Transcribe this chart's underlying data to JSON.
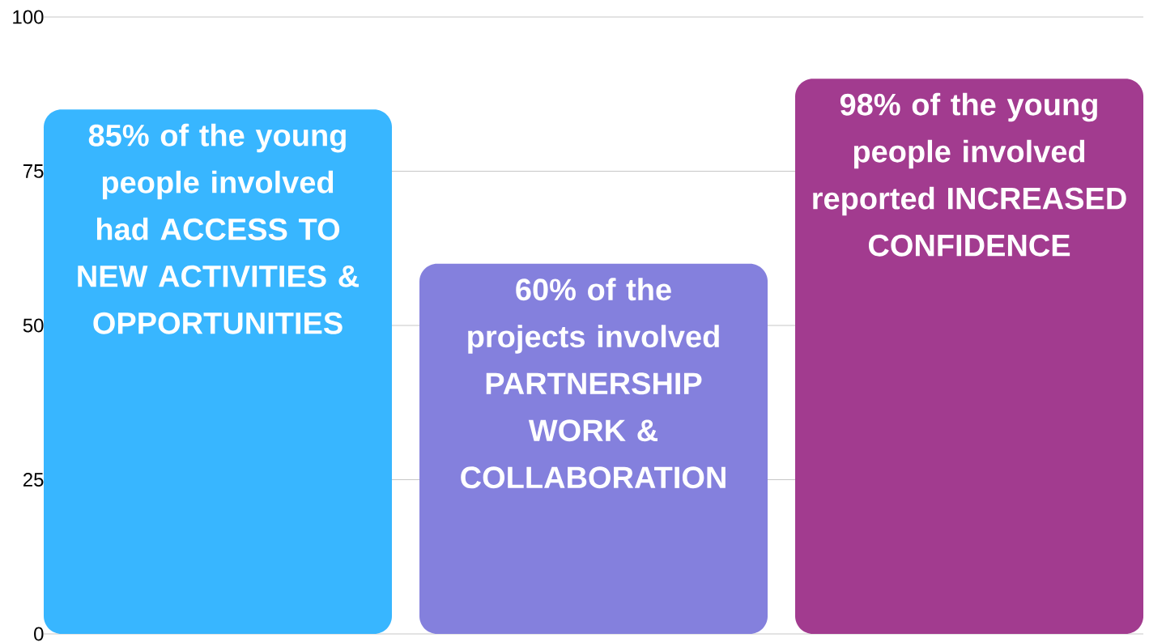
{
  "chart_data": {
    "type": "bar",
    "categories": [
      null,
      null,
      null
    ],
    "values": [
      85,
      60,
      90
    ],
    "colors": [
      "#38b6ff",
      "#8480dd",
      "#a23b8f"
    ],
    "ylim": [
      0,
      100
    ],
    "yticks": [
      0,
      25,
      50,
      75,
      100
    ],
    "grid": "y",
    "annotations": [
      "85% of the young people involved had ACCESS TO NEW ACTIVITIES & OPPORTUNITIES",
      "60% of the projects involved PARTNERSHIP WORK & COLLABORATION",
      "98% of the young people involved reported INCREASED CONFIDENCE"
    ]
  }
}
